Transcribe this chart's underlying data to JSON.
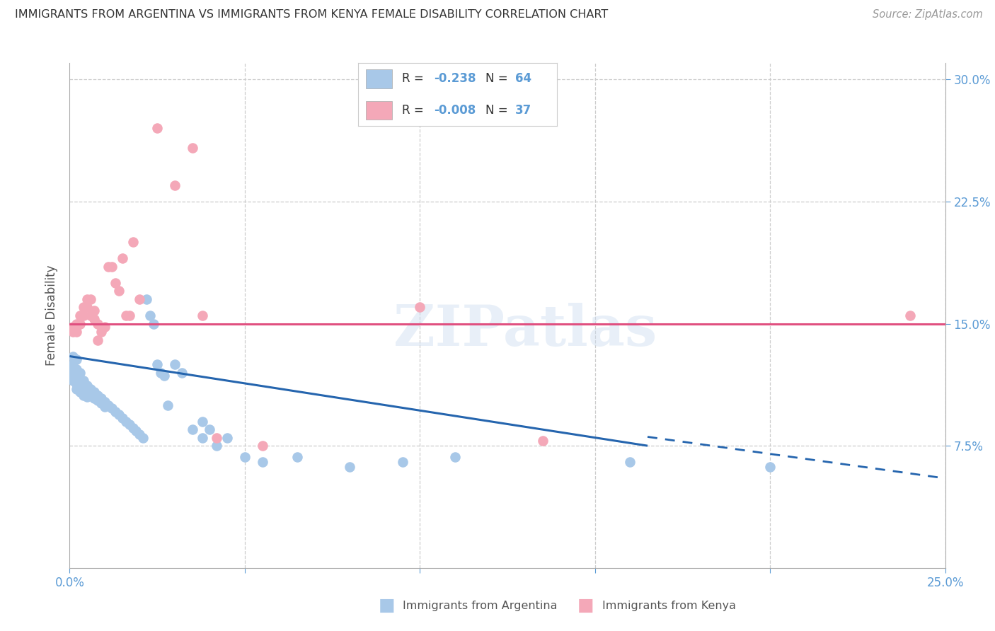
{
  "title": "IMMIGRANTS FROM ARGENTINA VS IMMIGRANTS FROM KENYA FEMALE DISABILITY CORRELATION CHART",
  "source": "Source: ZipAtlas.com",
  "ylabel": "Female Disability",
  "xlim": [
    0.0,
    0.25
  ],
  "ylim": [
    0.0,
    0.31
  ],
  "argentina_R": "-0.238",
  "argentina_N": "64",
  "kenya_R": "-0.008",
  "kenya_N": "37",
  "argentina_color": "#a8c8e8",
  "kenya_color": "#f4a8b8",
  "argentina_line_color": "#2565ae",
  "kenya_line_color": "#e05080",
  "watermark": "ZIPatlas",
  "arg_x": [
    0.001,
    0.001,
    0.001,
    0.001,
    0.001,
    0.002,
    0.002,
    0.002,
    0.002,
    0.002,
    0.003,
    0.003,
    0.003,
    0.003,
    0.004,
    0.004,
    0.004,
    0.005,
    0.005,
    0.005,
    0.006,
    0.006,
    0.007,
    0.007,
    0.008,
    0.008,
    0.009,
    0.009,
    0.01,
    0.01,
    0.011,
    0.012,
    0.013,
    0.014,
    0.015,
    0.016,
    0.017,
    0.018,
    0.019,
    0.02,
    0.021,
    0.022,
    0.023,
    0.024,
    0.025,
    0.026,
    0.027,
    0.028,
    0.03,
    0.032,
    0.035,
    0.038,
    0.04,
    0.045,
    0.05,
    0.055,
    0.065,
    0.08,
    0.095,
    0.11,
    0.16,
    0.2,
    0.038,
    0.042
  ],
  "arg_y": [
    0.13,
    0.125,
    0.122,
    0.118,
    0.115,
    0.128,
    0.122,
    0.118,
    0.113,
    0.11,
    0.12,
    0.115,
    0.11,
    0.108,
    0.115,
    0.11,
    0.106,
    0.112,
    0.108,
    0.105,
    0.11,
    0.106,
    0.108,
    0.104,
    0.106,
    0.103,
    0.104,
    0.101,
    0.102,
    0.099,
    0.1,
    0.098,
    0.096,
    0.094,
    0.092,
    0.09,
    0.088,
    0.086,
    0.084,
    0.082,
    0.08,
    0.165,
    0.155,
    0.15,
    0.125,
    0.12,
    0.118,
    0.1,
    0.125,
    0.12,
    0.085,
    0.09,
    0.085,
    0.08,
    0.068,
    0.065,
    0.068,
    0.062,
    0.065,
    0.068,
    0.065,
    0.062,
    0.08,
    0.075
  ],
  "ken_x": [
    0.001,
    0.001,
    0.002,
    0.002,
    0.002,
    0.003,
    0.003,
    0.004,
    0.004,
    0.005,
    0.005,
    0.006,
    0.006,
    0.007,
    0.007,
    0.008,
    0.009,
    0.01,
    0.011,
    0.012,
    0.013,
    0.014,
    0.015,
    0.016,
    0.017,
    0.018,
    0.02,
    0.025,
    0.03,
    0.035,
    0.038,
    0.042,
    0.055,
    0.1,
    0.135,
    0.24,
    0.008
  ],
  "ken_y": [
    0.148,
    0.145,
    0.15,
    0.148,
    0.145,
    0.155,
    0.15,
    0.16,
    0.155,
    0.165,
    0.16,
    0.165,
    0.155,
    0.158,
    0.153,
    0.15,
    0.145,
    0.148,
    0.185,
    0.185,
    0.175,
    0.17,
    0.19,
    0.155,
    0.155,
    0.2,
    0.165,
    0.27,
    0.235,
    0.258,
    0.155,
    0.08,
    0.075,
    0.16,
    0.078,
    0.155,
    0.14
  ]
}
